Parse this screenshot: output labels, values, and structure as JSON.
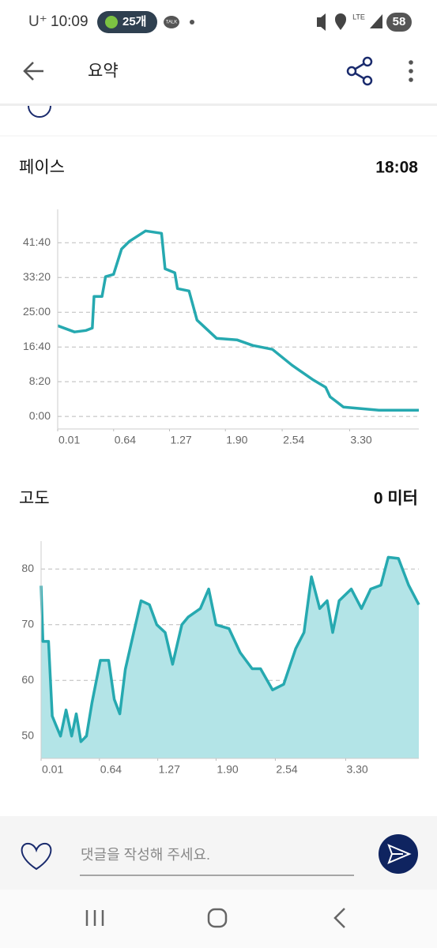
{
  "status_bar": {
    "carrier": "U⁺",
    "time": "10:09",
    "badge": "25개",
    "talk": "TALK",
    "network": "LTE",
    "battery": "58"
  },
  "header": {
    "title": "요약"
  },
  "chart_data": [
    {
      "type": "line",
      "title": "페이스",
      "summary": "18:08",
      "color": "#26a9b0",
      "grid": true,
      "x": [
        0.01,
        0.2,
        0.33,
        0.4,
        0.42,
        0.51,
        0.55,
        0.64,
        0.73,
        0.82,
        1.0,
        1.18,
        1.22,
        1.33,
        1.36,
        1.49,
        1.58,
        1.8,
        2.03,
        2.21,
        2.43,
        2.65,
        2.88,
        3.03,
        3.08,
        3.23,
        3.63,
        4.08
      ],
      "values": [
        1306,
        1216,
        1238,
        1272,
        1727,
        1727,
        2011,
        2045,
        2408,
        2522,
        2670,
        2636,
        2124,
        2068,
        1840,
        1806,
        1386,
        1125,
        1102,
        1022,
        966,
        738,
        534,
        420,
        284,
        136,
        91,
        91
      ],
      "xlim": [
        0.01,
        4.08
      ],
      "xticks": [
        0.01,
        0.64,
        1.27,
        {
          "value": 1.9,
          "label": "1.90"
        },
        2.54,
        {
          "value": 3.3,
          "label": "3.30"
        }
      ],
      "ylim": [
        -180,
        2980
      ],
      "yticks": [
        {
          "value": 0,
          "label": "0:00"
        },
        {
          "value": 500,
          "label": "8:20"
        },
        {
          "value": 1000,
          "label": "16:40"
        },
        {
          "value": 1500,
          "label": "25:00"
        },
        {
          "value": 2000,
          "label": "33:20"
        },
        {
          "value": 2500,
          "label": "41:40"
        }
      ]
    },
    {
      "type": "area",
      "title": "고도",
      "summary": "0 미터",
      "color": "#26a9b0",
      "fill": "#b3e4e7",
      "grid": true,
      "x": [
        0.01,
        0.03,
        0.09,
        0.13,
        0.17,
        0.22,
        0.28,
        0.34,
        0.39,
        0.44,
        0.5,
        0.56,
        0.65,
        0.74,
        0.8,
        0.86,
        0.92,
        1.01,
        1.09,
        1.18,
        1.26,
        1.35,
        1.43,
        1.53,
        1.6,
        1.73,
        1.82,
        1.9,
        2.04,
        2.16,
        2.29,
        2.38,
        2.51,
        2.63,
        2.76,
        2.85,
        2.93,
        3.02,
        3.1,
        3.16,
        3.23,
        3.36,
        3.47,
        3.57,
        3.68,
        3.76,
        3.87,
        3.98,
        4.09
      ],
      "values": [
        77,
        67,
        67,
        53.6,
        52,
        50,
        54.7,
        50,
        54,
        49,
        50,
        56,
        63.6,
        63.6,
        56.6,
        54,
        62,
        68.6,
        74.3,
        73.6,
        70,
        68.6,
        62.9,
        70,
        71.4,
        72.9,
        76.4,
        70,
        69.3,
        65,
        62.1,
        62.1,
        58.3,
        59.3,
        65.7,
        68.6,
        78.6,
        72.9,
        74.3,
        68.6,
        74.3,
        76.4,
        72.9,
        76.4,
        77.1,
        82.1,
        81.9,
        77.1,
        73.6
      ],
      "xlim": [
        0.01,
        4.09
      ],
      "xticks": [
        0.01,
        0.64,
        1.27,
        {
          "value": 1.9,
          "label": "1.90"
        },
        2.54,
        {
          "value": 3.3,
          "label": "3.30"
        }
      ],
      "ylim": [
        46,
        85
      ],
      "yticks": [
        50,
        60,
        70,
        80
      ]
    }
  ],
  "comment_bar": {
    "placeholder": "댓글을 작성해 주세요."
  }
}
